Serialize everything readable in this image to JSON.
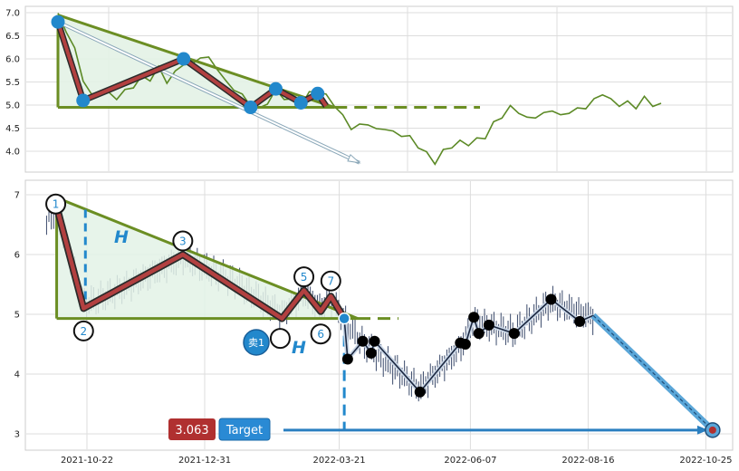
{
  "chart_data": [
    {
      "type": "line",
      "panel": "overview",
      "yticks": [
        "7.0",
        "6.5",
        "6.0",
        "5.5",
        "5.0",
        "4.5",
        "4.0"
      ],
      "ylim": [
        3.65,
        7.1
      ],
      "grid": true,
      "series": [
        {
          "values": [
            6.95,
            6.6,
            6.2,
            5.55,
            5.2,
            5.3,
            5.25,
            5.15,
            5.3,
            5.4,
            5.6,
            5.55,
            5.8,
            5.5,
            5.7,
            5.9,
            5.85,
            6.05,
            6.0,
            5.8,
            5.5,
            5.35,
            5.2,
            5.0,
            4.9,
            5.05,
            5.3,
            5.15,
            5.1,
            5.0,
            5.25,
            5.3,
            5.2,
            5.0,
            4.75,
            4.5,
            4.55,
            4.6,
            4.45,
            4.5,
            4.4,
            4.35,
            4.3,
            4.1,
            3.95,
            3.75,
            4.0,
            4.1,
            4.2,
            4.15,
            4.25,
            4.3,
            4.6,
            4.75,
            4.95,
            4.85,
            4.7,
            4.75,
            4.8,
            4.9,
            4.75,
            4.85,
            4.9,
            4.95,
            5.1,
            5.25,
            5.1,
            5.0,
            5.05,
            4.95,
            5.15,
            5.0,
            5.0
          ]
        }
      ],
      "pattern": {
        "pivot_points": [
          [
            0,
            6.8
          ],
          [
            3,
            5.1
          ],
          [
            15,
            6.0
          ],
          [
            23,
            4.95
          ],
          [
            26,
            5.35
          ],
          [
            29,
            5.05
          ],
          [
            31,
            5.25
          ],
          [
            32,
            4.98
          ]
        ],
        "upper_trendline": [
          [
            0,
            6.95
          ],
          [
            33,
            4.95
          ]
        ],
        "base_line": 4.95,
        "projection_arrow": [
          [
            0,
            6.8
          ],
          [
            36,
            3.75
          ]
        ]
      }
    },
    {
      "type": "candlestick",
      "panel": "detail",
      "x_tick_labels": [
        "2021-10-22",
        "2021-12-31",
        "2022-03-21",
        "2022-06-07",
        "2022-08-16",
        "2022-10-25"
      ],
      "yticks": [
        "7",
        "6",
        "5",
        "4",
        "3"
      ],
      "ylim": [
        2.8,
        7.2
      ],
      "grid": true,
      "pattern_points": [
        {
          "label": "1",
          "x": "2021-10-04",
          "y": 6.8
        },
        {
          "label": "2",
          "x": "2021-10-20",
          "y": 5.1
        },
        {
          "label": "3",
          "x": "2021-12-18",
          "y": 6.0
        },
        {
          "label": "",
          "x": "2022-02-15",
          "y": 4.93
        },
        {
          "label": "5",
          "x": "2022-02-28",
          "y": 5.4
        },
        {
          "label": "6",
          "x": "2022-03-10",
          "y": 5.05
        },
        {
          "label": "7",
          "x": "2022-03-16",
          "y": 5.3
        },
        {
          "label": "",
          "x": "2022-03-24",
          "y": 4.93
        }
      ],
      "upper_trendline": [
        [
          "2021-10-04",
          6.95
        ],
        [
          "2022-04-01",
          4.93
        ]
      ],
      "base_line": 4.93,
      "height_marker": "H",
      "sell_badge": "卖1",
      "projected_path": [
        {
          "x": "2022-03-26",
          "y": 4.25
        },
        {
          "x": "2022-04-04",
          "y": 4.55
        },
        {
          "x": "2022-04-09",
          "y": 4.35
        },
        {
          "x": "2022-04-11",
          "y": 4.55
        },
        {
          "x": "2022-05-08",
          "y": 3.7
        },
        {
          "x": "2022-06-01",
          "y": 4.52
        },
        {
          "x": "2022-06-04",
          "y": 4.5
        },
        {
          "x": "2022-06-09",
          "y": 4.95
        },
        {
          "x": "2022-06-12",
          "y": 4.68
        },
        {
          "x": "2022-06-18",
          "y": 4.82
        },
        {
          "x": "2022-07-03",
          "y": 4.68
        },
        {
          "x": "2022-07-25",
          "y": 5.25
        },
        {
          "x": "2022-08-11",
          "y": 4.88
        },
        {
          "x": "2022-08-19",
          "y": 4.98
        }
      ],
      "target_arrow": [
        [
          "2022-08-19",
          4.98
        ],
        [
          "2022-10-29",
          3.063
        ]
      ],
      "target_value": "3.063",
      "target_label": "Target"
    }
  ],
  "colors": {
    "triangle_edge": "#6b8e23",
    "triangle_fill": "#e3f2e6",
    "pattern_line": "#b24040",
    "pivot_blue": "#2288cc",
    "price_green": "#5c8a26",
    "candle": "#3b4a6b",
    "projection": "#1f4e79",
    "target_badge_value": "#b03030",
    "target_badge_label": "#2a8ad4"
  }
}
